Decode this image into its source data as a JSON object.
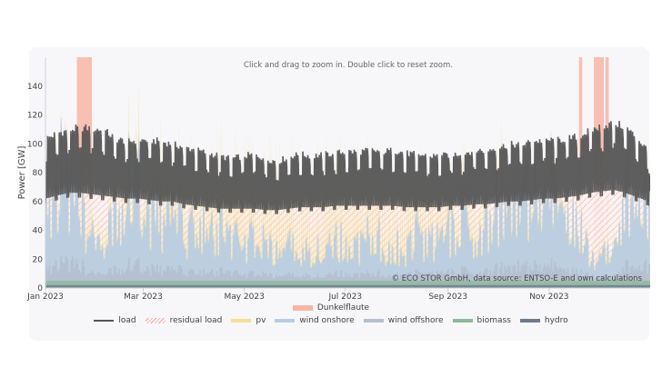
{
  "chart_data": {
    "type": "area",
    "hint": "Click and drag to zoom in. Double click to reset zoom.",
    "ylabel": "Power [GW]",
    "ylim": [
      0,
      160
    ],
    "yticks": [
      0,
      20,
      40,
      60,
      80,
      100,
      120,
      140
    ],
    "xlim": [
      "2023-01-01",
      "2023-12-31"
    ],
    "xticks": [
      {
        "date": "2023-01-01",
        "label": "Jan 2023"
      },
      {
        "date": "2023-03-01",
        "label": "Mar 2023"
      },
      {
        "date": "2023-05-01",
        "label": "May 2023"
      },
      {
        "date": "2023-07-01",
        "label": "Jul 2023"
      },
      {
        "date": "2023-09-01",
        "label": "Sep 2023"
      },
      {
        "date": "2023-11-01",
        "label": "Nov 2023"
      }
    ],
    "annotation": "© ECO STOR GmbH, data source: ENTSO-E and own calculations",
    "dunkelflaute_periods": [
      [
        "2023-01-20",
        "2023-01-22"
      ],
      [
        "2023-01-23",
        "2023-01-28"
      ],
      [
        "2023-11-19",
        "2023-11-20"
      ],
      [
        "2023-11-28",
        "2023-12-03"
      ],
      [
        "2023-12-05",
        "2023-12-06"
      ]
    ],
    "weekly": {
      "load_max": [
        104,
        108,
        110,
        112,
        111,
        110,
        104,
        102,
        103,
        103,
        102,
        100,
        98,
        96,
        94,
        92,
        90,
        92,
        93,
        90,
        88,
        92,
        93,
        92,
        93,
        94,
        95,
        95,
        96,
        95,
        96,
        94,
        93,
        92,
        92,
        93,
        94,
        96,
        96,
        98,
        100,
        100,
        102,
        103,
        103,
        104,
        106,
        110,
        113,
        115,
        112,
        104,
        95
      ],
      "load_min": [
        62,
        64,
        66,
        66,
        65,
        64,
        63,
        62,
        62,
        61,
        60,
        60,
        58,
        57,
        56,
        55,
        55,
        55,
        55,
        54,
        54,
        55,
        56,
        56,
        56,
        57,
        57,
        57,
        57,
        57,
        57,
        56,
        56,
        56,
        56,
        57,
        57,
        58,
        58,
        59,
        60,
        60,
        61,
        62,
        62,
        63,
        64,
        66,
        67,
        68,
        66,
        63,
        60
      ],
      "pv_peak": [
        8,
        10,
        12,
        14,
        16,
        20,
        24,
        28,
        32,
        36,
        40,
        44,
        46,
        50,
        54,
        56,
        58,
        60,
        62,
        62,
        64,
        66,
        66,
        64,
        62,
        62,
        62,
        60,
        60,
        58,
        56,
        54,
        52,
        50,
        46,
        42,
        40,
        36,
        32,
        28,
        24,
        20,
        16,
        14,
        12,
        10,
        8,
        8,
        7,
        7,
        7,
        7,
        7
      ],
      "wind_onshore": [
        50,
        60,
        55,
        45,
        30,
        10,
        45,
        55,
        50,
        40,
        35,
        40,
        30,
        35,
        25,
        28,
        22,
        20,
        25,
        18,
        15,
        20,
        15,
        18,
        20,
        22,
        18,
        20,
        25,
        22,
        20,
        18,
        25,
        20,
        22,
        30,
        35,
        28,
        40,
        45,
        35,
        50,
        45,
        55,
        50,
        40,
        30,
        10,
        20,
        25,
        45,
        55,
        60
      ],
      "wind_offshore": [
        10,
        12,
        11,
        10,
        6,
        3,
        9,
        11,
        10,
        8,
        7,
        8,
        6,
        7,
        5,
        6,
        5,
        4,
        5,
        4,
        3,
        4,
        3,
        4,
        4,
        5,
        4,
        4,
        5,
        5,
        4,
        4,
        5,
        4,
        5,
        6,
        7,
        6,
        8,
        9,
        7,
        10,
        9,
        11,
        10,
        8,
        6,
        3,
        4,
        5,
        9,
        11,
        12
      ],
      "biomass": 5,
      "hydro": 2
    }
  },
  "legend": {
    "dunkelflaute": "Dunkelflaute",
    "items": [
      {
        "label": "load",
        "color": "#555555"
      },
      {
        "label": "residual load",
        "color": "#f4a6a0"
      },
      {
        "label": "pv",
        "color": "#f5df96"
      },
      {
        "label": "wind onshore",
        "color": "#b8cde3"
      },
      {
        "label": "wind offshore",
        "color": "#b4bfcf"
      },
      {
        "label": "biomass",
        "color": "#8fb89a"
      },
      {
        "label": "hydro",
        "color": "#6e7a8c"
      }
    ],
    "dunkelflaute_color": "#f9b5a4"
  }
}
